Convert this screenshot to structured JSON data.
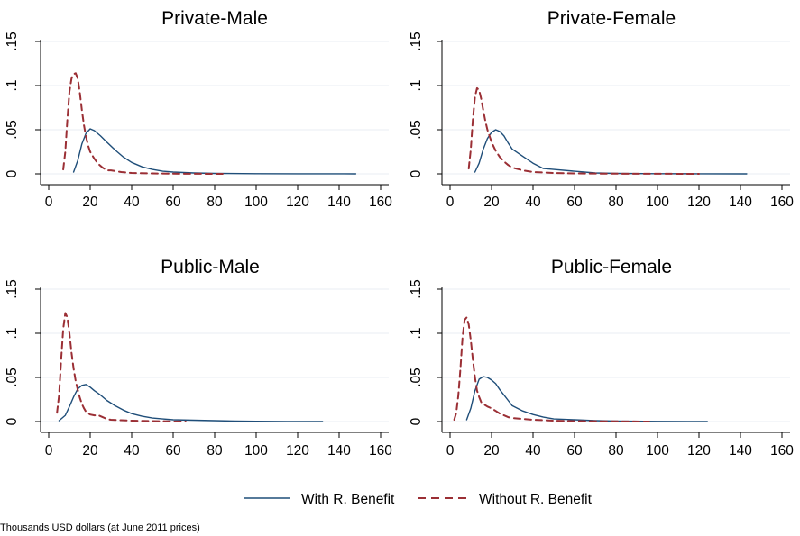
{
  "colors": {
    "with_benefit": "#1f4e79",
    "without_benefit": "#9b2f35",
    "grid": "#e8eef3",
    "axis": "#000000"
  },
  "legend": {
    "with_label": "With R. Benefit",
    "without_label": "Without R. Benefit"
  },
  "note": "Thousands USD dollars (at June 2011 prices)",
  "chart_data": [
    {
      "type": "line",
      "title": "Private-Male",
      "xlim": [
        0,
        160
      ],
      "ylim": [
        0,
        0.15
      ],
      "xticks": [
        "0",
        "20",
        "40",
        "60",
        "80",
        "100",
        "120",
        "140",
        "160"
      ],
      "yticks": [
        "0",
        ".05",
        ".1",
        ".15"
      ],
      "grid": true,
      "series": [
        {
          "name": "With R. Benefit",
          "style": "solid",
          "x": [
            12,
            14,
            16,
            18,
            20,
            22,
            25,
            28,
            32,
            36,
            40,
            45,
            50,
            55,
            60,
            70,
            80,
            100,
            120,
            148
          ],
          "y": [
            0.002,
            0.015,
            0.034,
            0.046,
            0.051,
            0.049,
            0.043,
            0.036,
            0.027,
            0.019,
            0.013,
            0.008,
            0.005,
            0.003,
            0.002,
            0.001,
            0.0005,
            0.0002,
            0.0001,
            0.0
          ]
        },
        {
          "name": "Without R. Benefit",
          "style": "dashed",
          "x": [
            7,
            8,
            9,
            10,
            11,
            12,
            13,
            14,
            15,
            16,
            17,
            18,
            19,
            20,
            22,
            24,
            26,
            28,
            30,
            35,
            40,
            50,
            60,
            70,
            84
          ],
          "y": [
            0.005,
            0.025,
            0.062,
            0.093,
            0.108,
            0.113,
            0.114,
            0.108,
            0.092,
            0.072,
            0.055,
            0.042,
            0.032,
            0.025,
            0.017,
            0.011,
            0.007,
            0.004,
            0.004,
            0.002,
            0.001,
            0.0005,
            0.0002,
            0.0001,
            0.0
          ]
        }
      ]
    },
    {
      "type": "line",
      "title": "Private-Female",
      "xlim": [
        0,
        160
      ],
      "ylim": [
        0,
        0.15
      ],
      "xticks": [
        "0",
        "20",
        "40",
        "60",
        "80",
        "100",
        "120",
        "140",
        "160"
      ],
      "yticks": [
        "0",
        ".05",
        ".1",
        ".15"
      ],
      "grid": true,
      "series": [
        {
          "name": "With R. Benefit",
          "style": "solid",
          "x": [
            12,
            14,
            16,
            18,
            20,
            22,
            24,
            26,
            28,
            30,
            35,
            40,
            45,
            50,
            60,
            70,
            80,
            100,
            120,
            143
          ],
          "y": [
            0.002,
            0.012,
            0.028,
            0.04,
            0.047,
            0.05,
            0.048,
            0.043,
            0.035,
            0.028,
            0.02,
            0.012,
            0.006,
            0.005,
            0.003,
            0.001,
            0.0005,
            0.0002,
            0.0001,
            0.0
          ]
        },
        {
          "name": "Without R. Benefit",
          "style": "dashed",
          "x": [
            9,
            10,
            11,
            12,
            13,
            14,
            15,
            16,
            17,
            18,
            20,
            22,
            24,
            26,
            28,
            30,
            35,
            40,
            50,
            60,
            80,
            100,
            120
          ],
          "y": [
            0.006,
            0.028,
            0.062,
            0.087,
            0.097,
            0.095,
            0.085,
            0.072,
            0.06,
            0.05,
            0.036,
            0.026,
            0.019,
            0.014,
            0.01,
            0.007,
            0.004,
            0.002,
            0.001,
            0.0005,
            0.0002,
            0.0001,
            0.0
          ]
        }
      ]
    },
    {
      "type": "line",
      "title": "Public-Male",
      "xlim": [
        0,
        160
      ],
      "ylim": [
        0,
        0.15
      ],
      "xticks": [
        "0",
        "20",
        "40",
        "60",
        "80",
        "100",
        "120",
        "140",
        "160"
      ],
      "yticks": [
        "0",
        ".05",
        ".1",
        ".15"
      ],
      "grid": true,
      "series": [
        {
          "name": "With R. Benefit",
          "style": "solid",
          "x": [
            5,
            8,
            10,
            12,
            14,
            16,
            18,
            20,
            22,
            25,
            28,
            32,
            36,
            40,
            45,
            50,
            55,
            60,
            70,
            80,
            90,
            100,
            115,
            132
          ],
          "y": [
            0.001,
            0.007,
            0.017,
            0.028,
            0.037,
            0.041,
            0.042,
            0.039,
            0.035,
            0.03,
            0.024,
            0.018,
            0.013,
            0.009,
            0.006,
            0.004,
            0.003,
            0.002,
            0.0015,
            0.001,
            0.0005,
            0.0003,
            0.0001,
            0.0
          ]
        },
        {
          "name": "Without R. Benefit",
          "style": "dashed",
          "x": [
            4,
            5,
            6,
            7,
            8,
            9,
            10,
            11,
            12,
            13,
            14,
            15,
            16,
            17,
            18,
            20,
            22,
            24,
            26,
            28,
            30,
            35,
            40,
            50,
            60,
            66
          ],
          "y": [
            0.01,
            0.03,
            0.07,
            0.105,
            0.123,
            0.118,
            0.1,
            0.078,
            0.06,
            0.046,
            0.036,
            0.027,
            0.02,
            0.015,
            0.011,
            0.008,
            0.007,
            0.007,
            0.005,
            0.003,
            0.002,
            0.0015,
            0.001,
            0.0005,
            0.0002,
            0.0
          ]
        }
      ]
    },
    {
      "type": "line",
      "title": "Public-Female",
      "xlim": [
        0,
        160
      ],
      "ylim": [
        0,
        0.15
      ],
      "xticks": [
        "0",
        "20",
        "40",
        "60",
        "80",
        "100",
        "120",
        "140",
        "160"
      ],
      "yticks": [
        "0",
        ".05",
        ".1",
        ".15"
      ],
      "grid": true,
      "series": [
        {
          "name": "With R. Benefit",
          "style": "solid",
          "x": [
            8,
            10,
            12,
            14,
            16,
            18,
            20,
            22,
            24,
            26,
            28,
            30,
            35,
            40,
            45,
            50,
            60,
            70,
            80,
            100,
            124
          ],
          "y": [
            0.002,
            0.015,
            0.035,
            0.048,
            0.051,
            0.05,
            0.047,
            0.043,
            0.036,
            0.03,
            0.024,
            0.018,
            0.012,
            0.008,
            0.005,
            0.003,
            0.002,
            0.001,
            0.0005,
            0.0002,
            0.0
          ]
        },
        {
          "name": "Without R. Benefit",
          "style": "dashed",
          "x": [
            2,
            3,
            4,
            5,
            6,
            7,
            8,
            9,
            10,
            11,
            12,
            13,
            14,
            15,
            16,
            18,
            20,
            22,
            24,
            26,
            28,
            30,
            35,
            40,
            50,
            60,
            80,
            96
          ],
          "y": [
            0.002,
            0.01,
            0.03,
            0.06,
            0.095,
            0.115,
            0.118,
            0.11,
            0.092,
            0.07,
            0.05,
            0.035,
            0.028,
            0.022,
            0.02,
            0.017,
            0.015,
            0.012,
            0.009,
            0.007,
            0.005,
            0.004,
            0.003,
            0.002,
            0.001,
            0.0005,
            0.0002,
            0.0
          ]
        }
      ]
    }
  ]
}
